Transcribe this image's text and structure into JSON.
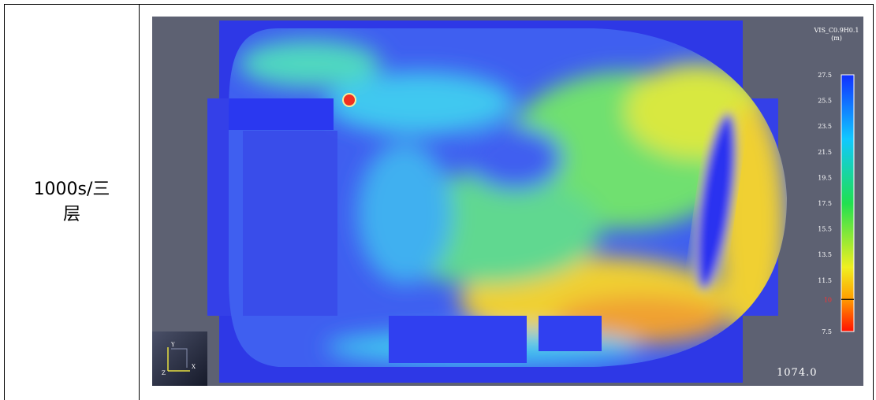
{
  "row": {
    "label": "1000s/三层"
  },
  "figure": {
    "legend_title": "VIS_C0.9H0.1",
    "legend_unit": "(m)",
    "legend_ticks": [
      27.5,
      25.5,
      23.5,
      21.5,
      19.5,
      17.5,
      15.5,
      13.5,
      11.5,
      7.5
    ],
    "legend_marker": 10,
    "time": "1074.0",
    "axis_labels": [
      "Y",
      "X",
      "Z"
    ]
  }
}
